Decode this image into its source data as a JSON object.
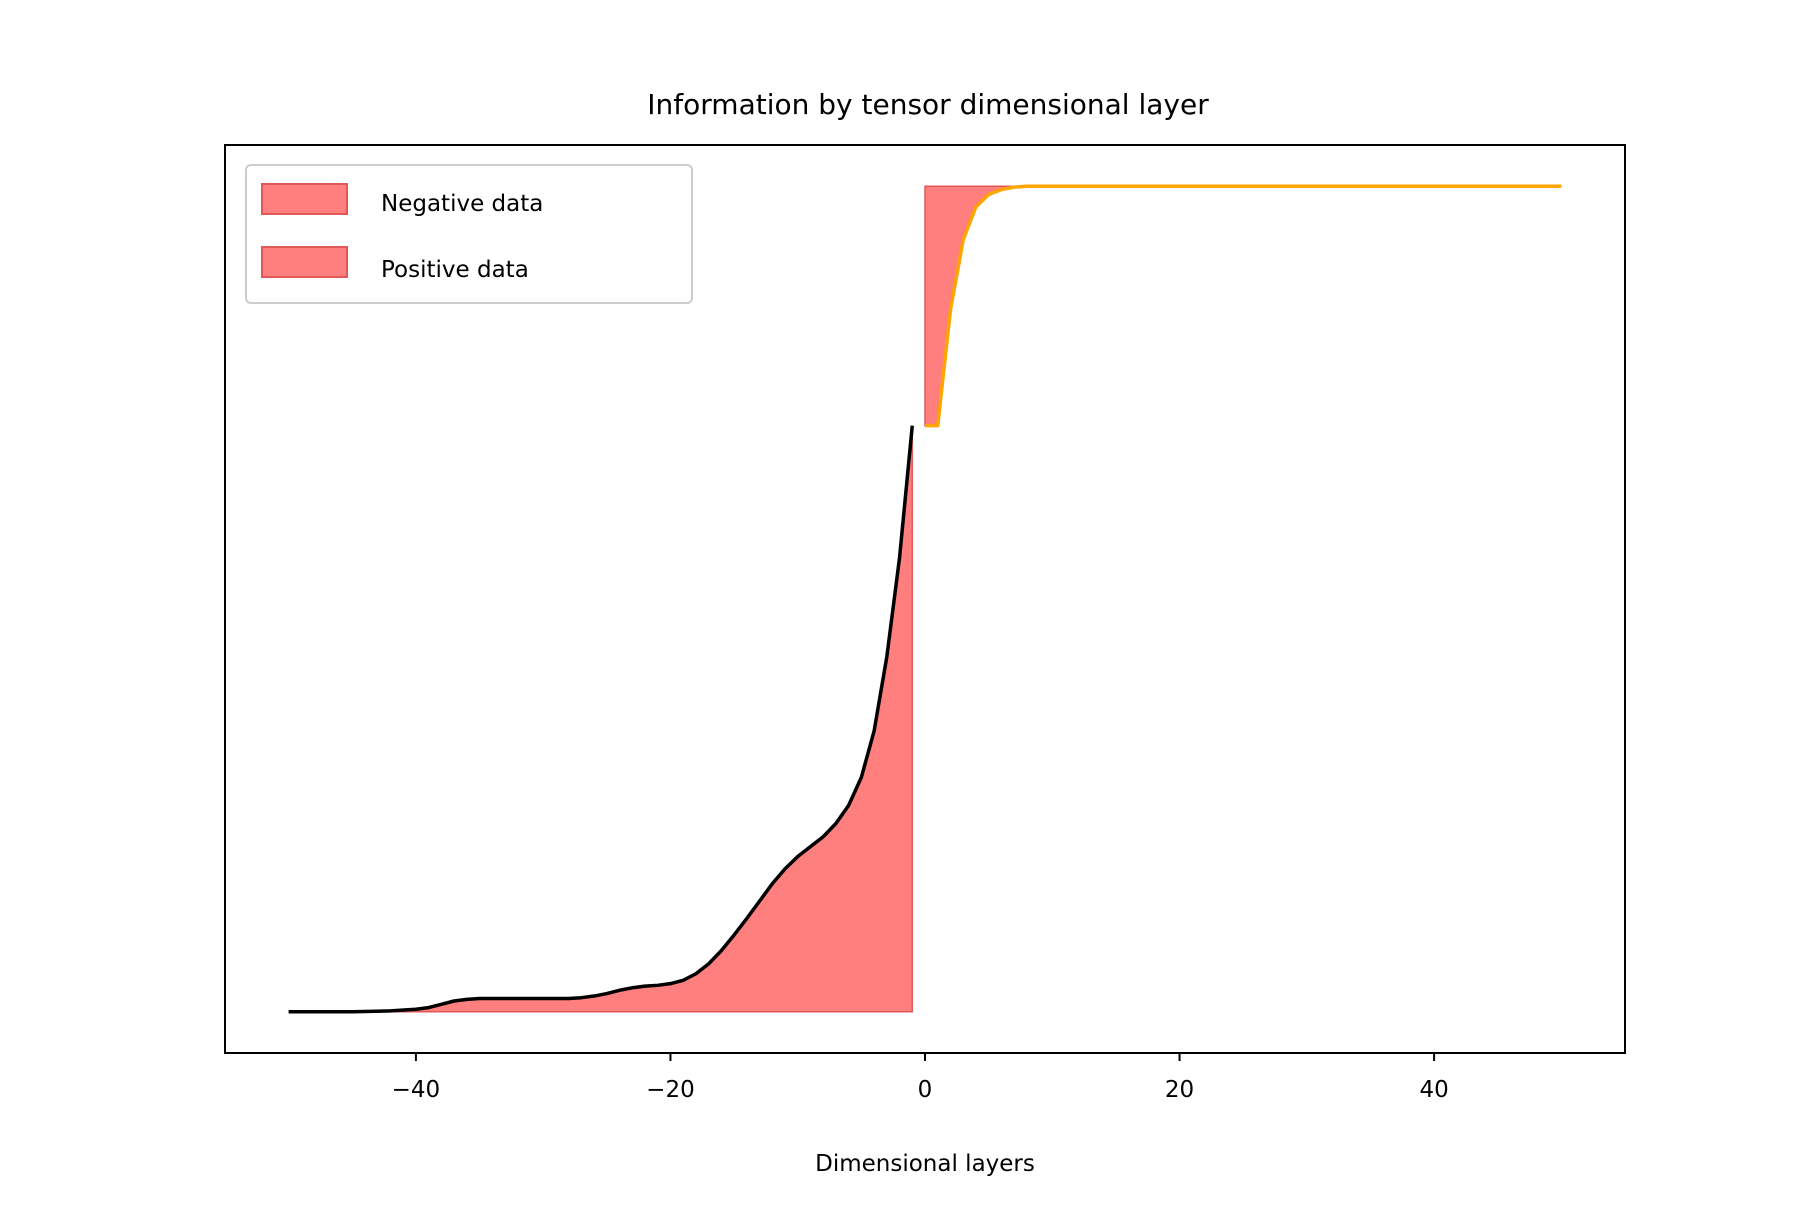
{
  "chart_data": {
    "type": "area",
    "title": "Information by tensor dimensional layer",
    "xlabel": "Dimensional layers",
    "ylabel": "",
    "xlim": [
      -55,
      55
    ],
    "ylim": [
      -0.05,
      1.05
    ],
    "x_ticks": [
      -40,
      -20,
      0,
      20,
      40
    ],
    "x_tick_labels": [
      "−40",
      "−20",
      "0",
      "20",
      "40"
    ],
    "y_ticks_visible": false,
    "grid": false,
    "legend": {
      "location": "top-left",
      "entries": [
        {
          "label": "Negative data",
          "color": "#ff7f7f"
        },
        {
          "label": "Positive data",
          "color": "#ff7f7f"
        }
      ]
    },
    "colors": {
      "fill": "#ff7f7f",
      "fill_edge": "#e05858",
      "negative_line": "#000000",
      "positive_line": "#ffa500"
    },
    "series": [
      {
        "role": "negative",
        "line_color": "#000000",
        "fill_color": "#ff7f7f",
        "points": [
          [
            -50,
            0.0
          ],
          [
            -45,
            0.0
          ],
          [
            -42,
            0.001
          ],
          [
            -40,
            0.003
          ],
          [
            -39,
            0.005
          ],
          [
            -38,
            0.009
          ],
          [
            -37,
            0.013
          ],
          [
            -36,
            0.015
          ],
          [
            -35,
            0.016
          ],
          [
            -34,
            0.016
          ],
          [
            -32,
            0.016
          ],
          [
            -30,
            0.016
          ],
          [
            -28,
            0.016
          ],
          [
            -27,
            0.017
          ],
          [
            -26,
            0.019
          ],
          [
            -25,
            0.022
          ],
          [
            -24,
            0.026
          ],
          [
            -23,
            0.029
          ],
          [
            -22,
            0.031
          ],
          [
            -21,
            0.032
          ],
          [
            -20,
            0.034
          ],
          [
            -19,
            0.038
          ],
          [
            -18,
            0.046
          ],
          [
            -17,
            0.058
          ],
          [
            -16,
            0.074
          ],
          [
            -15,
            0.093
          ],
          [
            -14,
            0.113
          ],
          [
            -13,
            0.134
          ],
          [
            -12,
            0.155
          ],
          [
            -11,
            0.173
          ],
          [
            -10,
            0.188
          ],
          [
            -9,
            0.2
          ],
          [
            -8,
            0.212
          ],
          [
            -7,
            0.228
          ],
          [
            -6,
            0.25
          ],
          [
            -5,
            0.284
          ],
          [
            -4,
            0.34
          ],
          [
            -3,
            0.43
          ],
          [
            -2,
            0.55
          ],
          [
            -1,
            0.71
          ]
        ]
      },
      {
        "role": "positive",
        "line_color": "#ffa500",
        "fill_color": "#ff7f7f",
        "points": [
          [
            0,
            0.71
          ],
          [
            1,
            0.71
          ],
          [
            2,
            0.85
          ],
          [
            3,
            0.935
          ],
          [
            4,
            0.975
          ],
          [
            5,
            0.99
          ],
          [
            6,
            0.996
          ],
          [
            7,
            0.999
          ],
          [
            8,
            1.0
          ],
          [
            10,
            1.0
          ],
          [
            20,
            1.0
          ],
          [
            30,
            1.0
          ],
          [
            40,
            1.0
          ],
          [
            50,
            1.0
          ]
        ]
      }
    ]
  }
}
